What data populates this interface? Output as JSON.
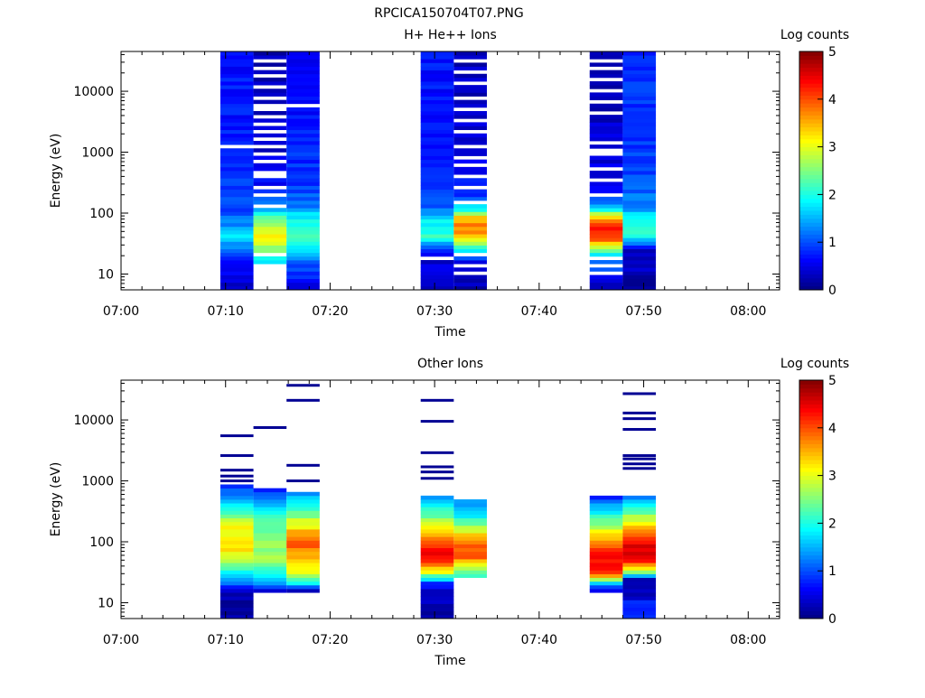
{
  "figure": {
    "title": "RPCICA150704T07.PNG"
  },
  "chart_data": [
    {
      "type": "heatmap",
      "title": "H+ He++ Ions",
      "xlabel": "Time",
      "ylabel": "Energy (eV)",
      "xlim": [
        "07:00",
        "08:03"
      ],
      "x_ticks": [
        "07:00",
        "07:10",
        "07:20",
        "07:30",
        "07:40",
        "07:50",
        "08:00"
      ],
      "ylim": [
        5.5,
        45000
      ],
      "yscale": "log",
      "y_ticks": [
        "10",
        "100",
        "1000",
        "10000"
      ],
      "colorbar": {
        "label": "Log counts",
        "range": [
          0,
          5
        ],
        "ticks": [
          "0",
          "1",
          "2",
          "3",
          "4",
          "5"
        ]
      },
      "columns": [
        {
          "start": "07:09:30",
          "end": "07:12:40",
          "emin": 5.5,
          "emax": 45000,
          "profile": [
            [
              5.5,
              0.3
            ],
            [
              15,
              0.7
            ],
            [
              25,
              1.1
            ],
            [
              40,
              1.8
            ],
            [
              60,
              1.4
            ],
            [
              100,
              1.0
            ],
            [
              300,
              0.9
            ],
            [
              1000,
              0.8
            ],
            [
              5000,
              0.7
            ],
            [
              45000,
              0.7
            ]
          ],
          "gaps": [
            1200
          ]
        },
        {
          "start": "07:12:40",
          "end": "07:15:50",
          "emin": 15,
          "emax": 45000,
          "profile": [
            [
              15,
              1.8
            ],
            [
              25,
              2.6
            ],
            [
              40,
              3.1
            ],
            [
              60,
              2.9
            ],
            [
              90,
              2.2
            ],
            [
              130,
              1.3
            ],
            [
              300,
              0.6
            ],
            [
              1000,
              0.4
            ],
            [
              45000,
              0.3
            ]
          ],
          "gaps": [
            20,
            140,
            200,
            280,
            380,
            480,
            700,
            900,
            1300,
            1700,
            2200,
            2800,
            3800,
            4800,
            6000,
            7500,
            12000,
            18000,
            25000,
            33000
          ]
        },
        {
          "start": "07:15:50",
          "end": "07:19:00",
          "emin": 5.5,
          "emax": 45000,
          "profile": [
            [
              5.5,
              0.5
            ],
            [
              15,
              1.0
            ],
            [
              25,
              1.8
            ],
            [
              40,
              2.2
            ],
            [
              60,
              2.0
            ],
            [
              90,
              1.8
            ],
            [
              130,
              1.2
            ],
            [
              300,
              0.9
            ],
            [
              1000,
              0.8
            ],
            [
              45000,
              0.5
            ]
          ],
          "gaps": [
            5500
          ]
        },
        {
          "start": "07:28:40",
          "end": "07:31:50",
          "emin": 5.5,
          "emax": 45000,
          "profile": [
            [
              5.5,
              0.2
            ],
            [
              20,
              0.5
            ],
            [
              30,
              1.4
            ],
            [
              40,
              2.1
            ],
            [
              60,
              2.0
            ],
            [
              90,
              1.6
            ],
            [
              130,
              1.0
            ],
            [
              300,
              0.8
            ],
            [
              1000,
              0.7
            ],
            [
              45000,
              0.7
            ]
          ],
          "gaps": [
            17
          ]
        },
        {
          "start": "07:31:50",
          "end": "07:35:00",
          "emin": 5.5,
          "emax": 45000,
          "profile": [
            [
              5.5,
              0.2
            ],
            [
              15,
              0.5
            ],
            [
              25,
              2.0
            ],
            [
              40,
              3.4
            ],
            [
              60,
              3.8
            ],
            [
              90,
              3.2
            ],
            [
              120,
              1.8
            ],
            [
              200,
              0.8
            ],
            [
              1000,
              0.4
            ],
            [
              45000,
              0.3
            ]
          ],
          "gaps": [
            10,
            14,
            22,
            160,
            250,
            380,
            600,
            800,
            1300,
            2200,
            3500,
            5000,
            8000,
            13000,
            20000,
            30000
          ]
        },
        {
          "start": "07:44:50",
          "end": "07:48:00",
          "emin": 5.5,
          "emax": 45000,
          "profile": [
            [
              5.5,
              0.2
            ],
            [
              20,
              1.4
            ],
            [
              30,
              3.2
            ],
            [
              40,
              4.2
            ],
            [
              60,
              4.4
            ],
            [
              80,
              3.8
            ],
            [
              100,
              2.6
            ],
            [
              150,
              1.0
            ],
            [
              300,
              0.5
            ],
            [
              45000,
              0.2
            ]
          ],
          "gaps": [
            10,
            14,
            18,
            200,
            330,
            500,
            900,
            1100,
            1500,
            4500,
            7000,
            11000,
            15000,
            24000,
            33000
          ]
        },
        {
          "start": "07:48:00",
          "end": "07:51:10",
          "emin": 5.5,
          "emax": 45000,
          "profile": [
            [
              5.5,
              0.2
            ],
            [
              25,
              0.4
            ],
            [
              35,
              1.6
            ],
            [
              50,
              2.2
            ],
            [
              80,
              2.0
            ],
            [
              120,
              1.4
            ],
            [
              300,
              1.0
            ],
            [
              1000,
              0.9
            ],
            [
              45000,
              0.8
            ]
          ],
          "gaps": []
        }
      ]
    },
    {
      "type": "heatmap",
      "title": "Other Ions",
      "xlabel": "Time",
      "ylabel": "Energy (eV)",
      "xlim": [
        "07:00",
        "08:03"
      ],
      "x_ticks": [
        "07:00",
        "07:10",
        "07:20",
        "07:30",
        "07:40",
        "07:50",
        "08:00"
      ],
      "ylim": [
        5.5,
        45000
      ],
      "yscale": "log",
      "y_ticks": [
        "10",
        "100",
        "1000",
        "10000"
      ],
      "colorbar": {
        "label": "Log counts",
        "range": [
          0,
          5
        ],
        "ticks": [
          "0",
          "1",
          "2",
          "3",
          "4",
          "5"
        ]
      },
      "columns": [
        {
          "start": "07:09:30",
          "end": "07:12:40",
          "emin": 5.5,
          "emax": 900,
          "profile": [
            [
              5.5,
              0.2
            ],
            [
              15,
              0.2
            ],
            [
              20,
              1.0
            ],
            [
              30,
              1.8
            ],
            [
              50,
              2.8
            ],
            [
              80,
              3.3
            ],
            [
              120,
              3.2
            ],
            [
              200,
              3.0
            ],
            [
              400,
              1.8
            ],
            [
              700,
              1.0
            ],
            [
              900,
              0.8
            ]
          ],
          "lines": [
            1000,
            1200,
            1500,
            2600,
            5500
          ]
        },
        {
          "start": "07:12:40",
          "end": "07:15:50",
          "emin": 15,
          "emax": 750,
          "profile": [
            [
              15,
              0.2
            ],
            [
              20,
              1.2
            ],
            [
              30,
              2.0
            ],
            [
              50,
              2.6
            ],
            [
              100,
              2.6
            ],
            [
              200,
              2.4
            ],
            [
              400,
              1.6
            ],
            [
              750,
              0.8
            ]
          ],
          "lines": [
            7500
          ]
        },
        {
          "start": "07:15:50",
          "end": "07:19:00",
          "emin": 15,
          "emax": 700,
          "profile": [
            [
              15,
              0.2
            ],
            [
              20,
              1.6
            ],
            [
              30,
              3.0
            ],
            [
              60,
              3.6
            ],
            [
              100,
              4.0
            ],
            [
              200,
              3.0
            ],
            [
              400,
              2.0
            ],
            [
              700,
              1.2
            ]
          ],
          "lines": [
            1000,
            1800,
            21000,
            37000
          ]
        },
        {
          "start": "07:28:40",
          "end": "07:31:50",
          "emin": 5.5,
          "emax": 550,
          "profile": [
            [
              5.5,
              0.2
            ],
            [
              9,
              0.2
            ],
            [
              20,
              0.6
            ],
            [
              30,
              2.8
            ],
            [
              50,
              4.4
            ],
            [
              80,
              4.3
            ],
            [
              120,
              3.8
            ],
            [
              200,
              2.8
            ],
            [
              350,
              2.0
            ],
            [
              550,
              1.2
            ]
          ],
          "lines": [
            1100,
            1400,
            1700,
            2900,
            9500,
            21000
          ]
        },
        {
          "start": "07:31:50",
          "end": "07:35:00",
          "emin": 25,
          "emax": 500,
          "profile": [
            [
              25,
              1.8
            ],
            [
              40,
              3.0
            ],
            [
              60,
              4.0
            ],
            [
              100,
              3.8
            ],
            [
              150,
              3.0
            ],
            [
              250,
              2.0
            ],
            [
              500,
              1.2
            ]
          ],
          "lines": []
        },
        {
          "start": "07:44:50",
          "end": "07:48:00",
          "emin": 15,
          "emax": 550,
          "profile": [
            [
              15,
              0.2
            ],
            [
              20,
              1.4
            ],
            [
              30,
              4.2
            ],
            [
              50,
              4.4
            ],
            [
              80,
              4.0
            ],
            [
              120,
              3.4
            ],
            [
              200,
              2.6
            ],
            [
              350,
              1.6
            ],
            [
              550,
              0.8
            ]
          ],
          "lines": []
        },
        {
          "start": "07:48:00",
          "end": "07:51:10",
          "emin": 5.5,
          "emax": 600,
          "profile": [
            [
              5.5,
              0.9
            ],
            [
              9,
              0.9
            ],
            [
              15,
              0.2
            ],
            [
              25,
              0.3
            ],
            [
              30,
              2.4
            ],
            [
              50,
              4.4
            ],
            [
              80,
              4.6
            ],
            [
              120,
              4.2
            ],
            [
              200,
              3.2
            ],
            [
              350,
              2.2
            ],
            [
              600,
              0.8
            ]
          ],
          "lines": [
            1600,
            1900,
            2300,
            2600,
            7000,
            10500,
            13000,
            27000
          ]
        }
      ]
    }
  ]
}
